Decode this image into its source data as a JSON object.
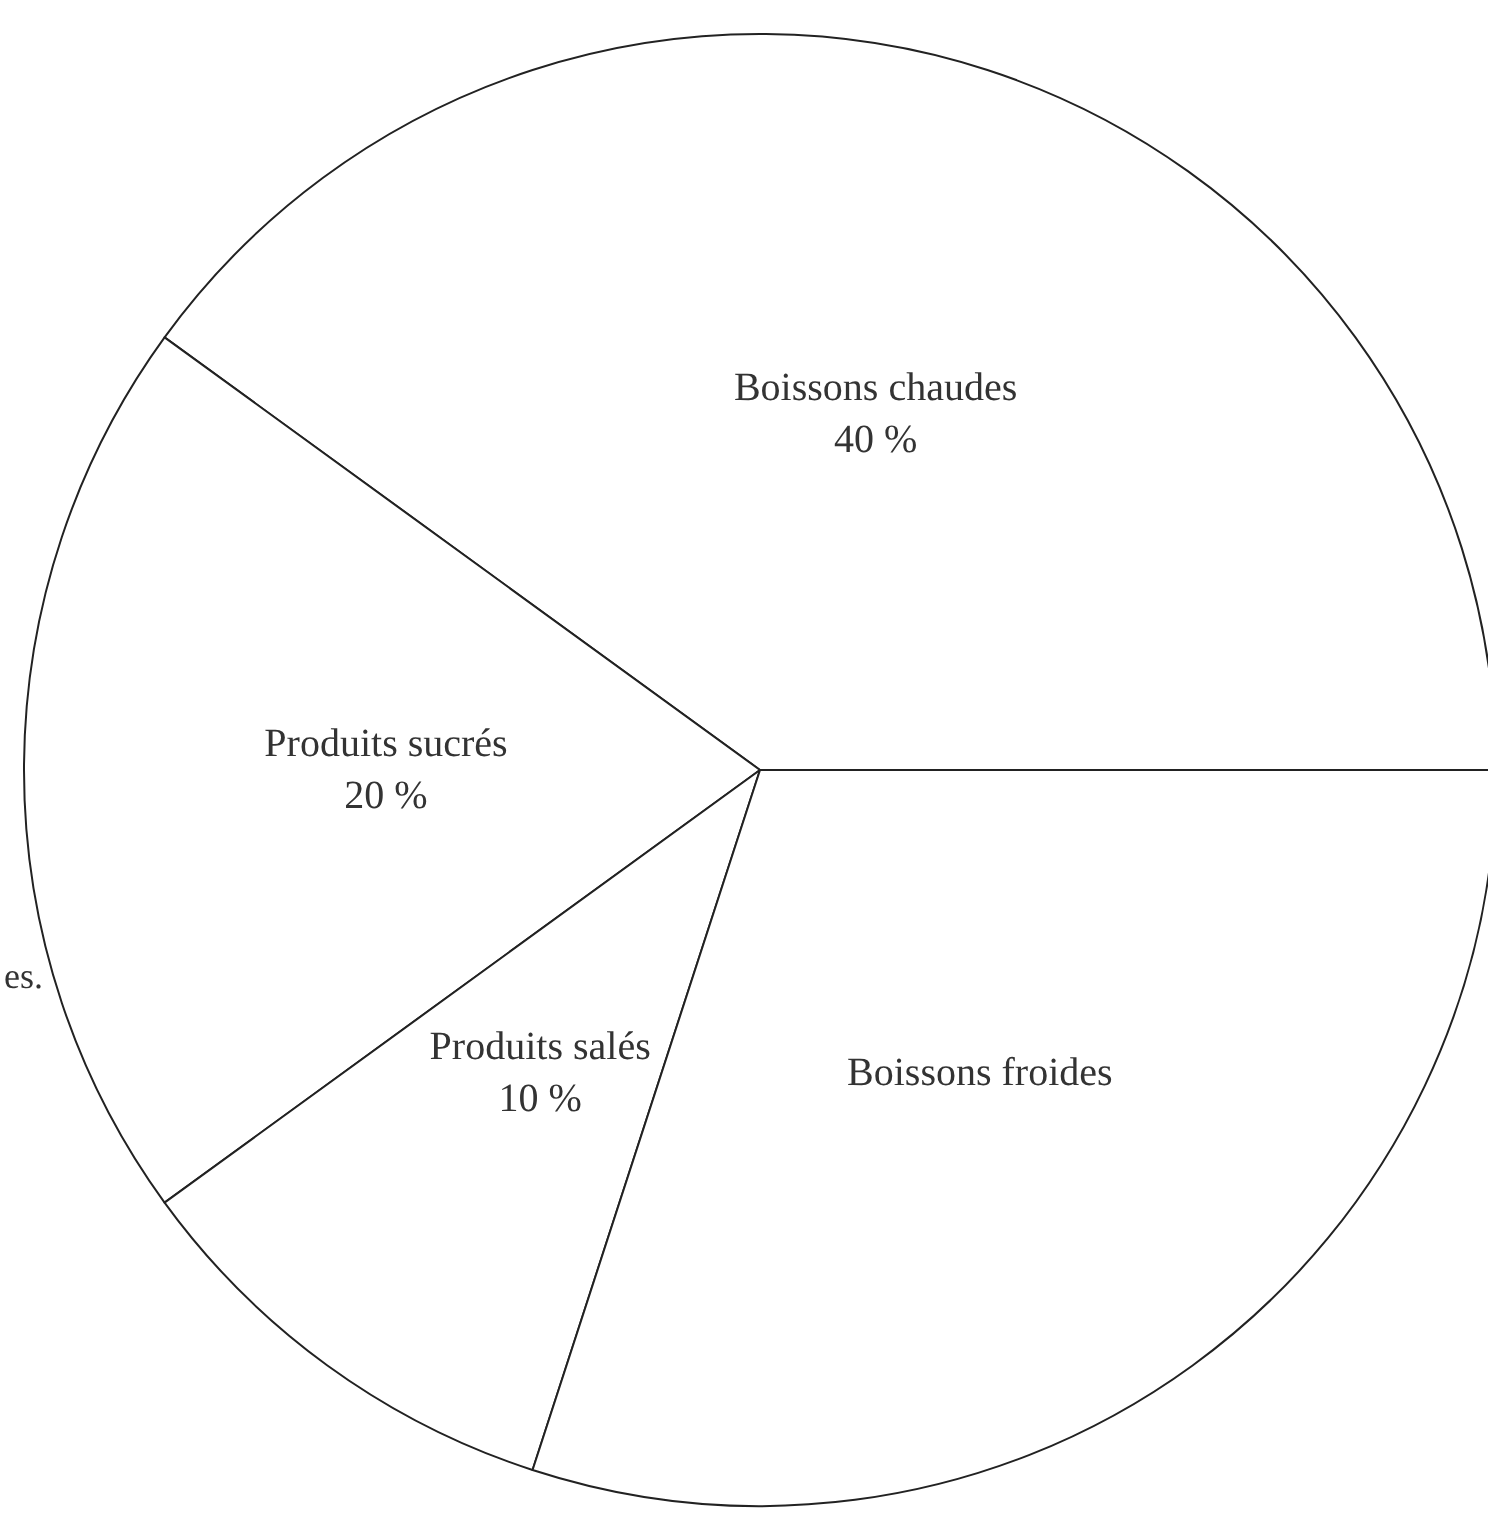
{
  "chart_data": {
    "type": "pie",
    "categories": [
      "Boissons chaudes",
      "Produits sucrés",
      "Produits salés",
      "Boissons froides"
    ],
    "values": [
      40,
      20,
      10,
      30
    ],
    "value_labels": [
      "40 %",
      "20 %",
      "10 %",
      null
    ],
    "colors": [
      "#ffffff",
      "#ffffff",
      "#ffffff",
      "#ffffff"
    ],
    "annotations": [
      "es."
    ],
    "legend": false
  }
}
